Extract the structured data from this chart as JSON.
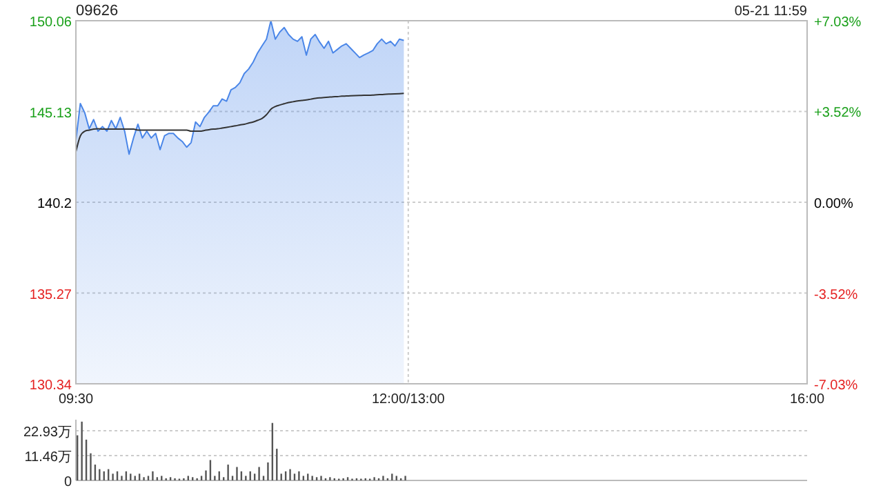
{
  "chart_data": {
    "type": "area",
    "title": "09626",
    "annotations": [
      "05-21 11:59"
    ],
    "categories": [
      "09:30",
      null,
      null,
      null,
      null,
      null,
      null,
      null,
      null,
      null,
      null,
      null,
      null,
      null,
      null,
      null,
      null,
      null,
      null,
      null,
      null,
      null,
      null,
      null,
      null,
      null,
      null,
      null,
      null,
      null,
      null,
      null,
      null,
      null,
      null,
      null,
      null,
      null,
      null,
      null,
      null,
      null,
      null,
      null,
      null,
      null,
      null,
      null,
      null,
      null,
      null,
      null,
      null,
      null,
      null,
      null,
      null,
      null,
      null,
      null,
      null,
      null,
      null,
      null,
      null,
      null,
      null,
      null,
      null,
      null,
      null,
      null,
      null,
      null,
      null,
      "12:00/13:00",
      null,
      null,
      null,
      null,
      null,
      null,
      null,
      null,
      null,
      null,
      null,
      null,
      null,
      null,
      null,
      null,
      null,
      null,
      null,
      null,
      null,
      null,
      null,
      null,
      null,
      null,
      null,
      null,
      null,
      null,
      null,
      null,
      null,
      null,
      null,
      null,
      null,
      null,
      null,
      null,
      null,
      null,
      null,
      null,
      null,
      null,
      null,
      null,
      null,
      null,
      null,
      null,
      null,
      null,
      null,
      null,
      null,
      null,
      null,
      null,
      null,
      null,
      null,
      null,
      null,
      null,
      null,
      null,
      null,
      null,
      null,
      null,
      null,
      null,
      null,
      null,
      null,
      null,
      null,
      null,
      null,
      null,
      null,
      null,
      null,
      null,
      null,
      null,
      null,
      "16:00"
    ],
    "ylim": [
      130.34,
      150.06
    ],
    "yticks": [
      130.34,
      135.27,
      140.2,
      145.13,
      150.06
    ],
    "y2lim": [
      -7.03,
      7.03
    ],
    "y2ticks": [
      {
        "value": -7.03,
        "label": "-7.03%"
      },
      {
        "value": -3.52,
        "label": "-3.52%"
      },
      {
        "value": 0,
        "label": "0.00%"
      },
      {
        "value": 3.52,
        "label": "+3.52%"
      },
      {
        "value": 7.03,
        "label": "+7.03%"
      }
    ],
    "y3lim": [
      0,
      28
    ],
    "y3ticks": [
      0,
      {
        "value": 11.46,
        "label": "11.46万"
      },
      {
        "value": 22.93,
        "label": "22.93万"
      }
    ],
    "grid": true,
    "series": [
      {
        "type": "area",
        "color": "#4a86e8",
        "values": [
          143.56,
          145.56,
          145.06,
          144.19,
          144.69,
          144.06,
          144.31,
          144.06,
          144.64,
          144.19,
          144.81,
          144.06,
          142.81,
          143.69,
          144.44,
          143.69,
          144.06,
          143.69,
          143.94,
          143.06,
          143.81,
          143.94,
          143.94,
          143.69,
          143.5,
          143.19,
          143.44,
          144.56,
          144.31,
          144.81,
          145.1,
          145.44,
          145.44,
          145.81,
          145.69,
          146.31,
          146.44,
          146.69,
          147.19,
          147.44,
          147.81,
          148.31,
          148.69,
          149.06,
          150.06,
          149.06,
          149.44,
          149.69,
          149.31,
          149.06,
          148.94,
          149.19,
          148.19,
          149.06,
          149.31,
          148.9,
          148.56,
          148.94,
          148.31,
          148.5,
          148.69,
          148.81,
          148.56,
          148.31,
          148.06,
          148.2,
          148.31,
          148.44,
          148.81,
          149.06,
          148.81,
          148.94,
          148.69,
          149.06,
          148.99,
          null,
          null,
          null,
          null,
          null,
          null,
          null,
          null,
          null,
          null,
          null,
          null,
          null,
          null,
          null,
          null,
          null,
          null,
          null,
          null,
          null,
          null,
          null,
          null,
          null,
          null,
          null,
          null,
          null,
          null,
          null,
          null,
          null,
          null,
          null,
          null,
          null,
          null,
          null,
          null,
          null,
          null,
          null,
          null,
          null,
          null,
          null,
          null,
          null,
          null,
          null,
          null,
          null,
          null,
          null,
          null,
          null,
          null,
          null,
          null,
          null,
          null,
          null,
          null,
          null,
          null,
          null,
          null,
          null,
          null,
          null,
          null,
          null,
          null,
          null,
          null,
          null,
          null,
          null,
          null,
          null,
          null,
          null,
          null,
          null,
          null,
          null,
          null,
          null,
          null,
          null
        ]
      },
      {
        "type": "line",
        "color": "#333333",
        "values": [
          142.94,
          143.8,
          144.06,
          144.12,
          144.17,
          144.19,
          144.17,
          144.17,
          144.17,
          144.17,
          144.17,
          144.17,
          144.17,
          144.17,
          144.12,
          144.12,
          144.12,
          144.12,
          144.12,
          144.12,
          144.12,
          144.12,
          144.12,
          144.12,
          144.12,
          144.12,
          144.06,
          144.06,
          144.06,
          144.1,
          144.14,
          144.17,
          144.19,
          144.23,
          144.27,
          144.31,
          144.35,
          144.4,
          144.44,
          144.5,
          144.56,
          144.65,
          144.75,
          144.95,
          145.25,
          145.4,
          145.48,
          145.55,
          145.62,
          145.66,
          145.7,
          145.73,
          145.76,
          145.8,
          145.84,
          145.87,
          145.89,
          145.91,
          145.93,
          145.94,
          145.96,
          145.97,
          145.98,
          145.99,
          146.0,
          146.01,
          146.01,
          146.02,
          146.04,
          146.05,
          146.07,
          146.08,
          146.09,
          146.1,
          146.11,
          null,
          null,
          null,
          null,
          null,
          null,
          null,
          null,
          null,
          null,
          null,
          null,
          null,
          null,
          null,
          null,
          null,
          null,
          null,
          null,
          null,
          null,
          null,
          null,
          null,
          null,
          null,
          null,
          null,
          null,
          null,
          null,
          null,
          null,
          null,
          null,
          null,
          null,
          null,
          null,
          null,
          null,
          null,
          null,
          null,
          null,
          null,
          null,
          null,
          null,
          null,
          null,
          null,
          null,
          null,
          null,
          null,
          null,
          null,
          null,
          null,
          null,
          null,
          null,
          null,
          null,
          null,
          null,
          null,
          null,
          null,
          null,
          null,
          null,
          null,
          null,
          null,
          null,
          null,
          null,
          null,
          null,
          null,
          null,
          null,
          null,
          null,
          null,
          null,
          null,
          null
        ]
      },
      {
        "type": "bar",
        "axis": "y3",
        "color": "#555555",
        "values": [
          20.8,
          27.1,
          18.8,
          12.5,
          7.3,
          5.2,
          4.2,
          5.2,
          3.1,
          4.2,
          2.1,
          4.2,
          3.1,
          2.1,
          3.1,
          1.5,
          2.1,
          4.2,
          1.5,
          2.1,
          1.0,
          1.5,
          1.0,
          0.8,
          1.0,
          2.1,
          1.5,
          1.0,
          2.1,
          4.6,
          9.4,
          2.1,
          4.2,
          1.5,
          7.3,
          2.1,
          6.2,
          4.2,
          2.1,
          4.2,
          3.1,
          6.2,
          2.1,
          8.3,
          26.5,
          14.6,
          3.1,
          4.2,
          5.2,
          3.1,
          4.2,
          2.1,
          3.1,
          2.1,
          1.5,
          2.1,
          1.0,
          1.5,
          1.0,
          0.8,
          1.0,
          1.5,
          0.8,
          1.0,
          0.8,
          1.0,
          0.8,
          1.5,
          1.0,
          2.1,
          1.0,
          3.1,
          2.1,
          1.0,
          2.1,
          null,
          null,
          null,
          null,
          null,
          null,
          null,
          null,
          null,
          null,
          null,
          null,
          null,
          null,
          null,
          null,
          null,
          null,
          null,
          null,
          null,
          null,
          null,
          null,
          null,
          null,
          null,
          null,
          null,
          null,
          null,
          null,
          null,
          null,
          null,
          null,
          null,
          null,
          null,
          null,
          null,
          null,
          null,
          null,
          null,
          null,
          null,
          null,
          null,
          null,
          null,
          null,
          null,
          null,
          null,
          null,
          null,
          null,
          null,
          null,
          null,
          null,
          null,
          null,
          null,
          null,
          null,
          null,
          null,
          null,
          null,
          null,
          null,
          null,
          null,
          null,
          null,
          null,
          null,
          null,
          null,
          null,
          null,
          null,
          null,
          null,
          null,
          null,
          null,
          null,
          null
        ]
      }
    ]
  }
}
